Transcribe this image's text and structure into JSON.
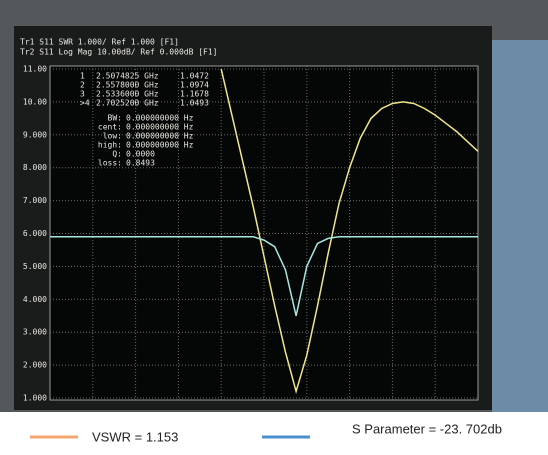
{
  "chart_data": {
    "type": "line",
    "header": [
      "Tr1 S11 SWR 1.000/ Ref 1.000 [F1]",
      "Tr2 S11 Log Mag 10.00dB/ Ref 0.000dB [F1]"
    ],
    "markers": [
      [
        "1",
        "2.5074825 GHz",
        "1.0472"
      ],
      [
        "2",
        "2.5578000 GHz",
        "1.0974"
      ],
      [
        "3",
        "2.5336000 GHz",
        "1.1678"
      ],
      [
        ">4",
        "2.7025200 GHz",
        "1.0493"
      ]
    ],
    "stats": [
      [
        "BW:",
        "0.000000000 Hz"
      ],
      [
        "cent:",
        "0.000000000 Hz"
      ],
      [
        "low:",
        "0.000000000 Hz"
      ],
      [
        "high:",
        "0.000000000 Hz"
      ],
      [
        "Q:",
        "0.0000"
      ],
      [
        "loss:",
        "0.8493"
      ]
    ],
    "categories": [
      null,
      null,
      null,
      null,
      null,
      null,
      null,
      null,
      null,
      null,
      null,
      null,
      null,
      null,
      null,
      null,
      null,
      null,
      null,
      null,
      null,
      null,
      null,
      null,
      null,
      null,
      null,
      null,
      null,
      null,
      null,
      null,
      null,
      null,
      null,
      null,
      null,
      null,
      null,
      null,
      null
    ],
    "series": [
      {
        "name": "VSWR = 1.153",
        "color": "#f2e68a",
        "legend_color": "#f0a66e",
        "values": [
          null,
          null,
          null,
          null,
          null,
          null,
          null,
          null,
          null,
          null,
          null,
          null,
          null,
          null,
          null,
          null,
          11.0,
          9.6,
          8.2,
          6.8,
          5.3,
          3.8,
          2.4,
          1.2,
          2.3,
          3.8,
          5.4,
          6.9,
          8.0,
          8.9,
          9.5,
          9.8,
          9.95,
          10.0,
          9.95,
          9.8,
          9.6,
          9.35,
          9.1,
          8.8,
          8.5
        ]
      },
      {
        "name": "S Parameter = -23. 702db",
        "color": "#a8e6e0",
        "legend_color": "#4a8fcc",
        "values": [
          5.9,
          5.9,
          5.9,
          5.9,
          5.9,
          5.9,
          5.9,
          5.9,
          5.9,
          5.9,
          5.9,
          5.9,
          5.9,
          5.9,
          5.9,
          5.9,
          5.9,
          5.9,
          5.9,
          5.9,
          5.8,
          5.6,
          4.9,
          3.5,
          5.0,
          5.7,
          5.85,
          5.9,
          5.9,
          5.9,
          5.9,
          5.9,
          5.9,
          5.9,
          5.9,
          5.9,
          5.9,
          5.9,
          5.9,
          5.9,
          5.9
        ]
      }
    ],
    "ylim": [
      1,
      11
    ],
    "yticks": [
      {
        "value": 11,
        "label": "11.00"
      },
      {
        "value": 10,
        "label": "10.00"
      },
      {
        "value": 9,
        "label": "9.000"
      },
      {
        "value": 8,
        "label": "8.000"
      },
      {
        "value": 7,
        "label": "7.000"
      },
      {
        "value": 6,
        "label": "6.000"
      },
      {
        "value": 5,
        "label": "5.000"
      },
      {
        "value": 4,
        "label": "4.000"
      },
      {
        "value": 3,
        "label": "3.000"
      },
      {
        "value": 2,
        "label": "2.000"
      },
      {
        "value": 1,
        "label": "1.000"
      }
    ],
    "grid": true
  }
}
